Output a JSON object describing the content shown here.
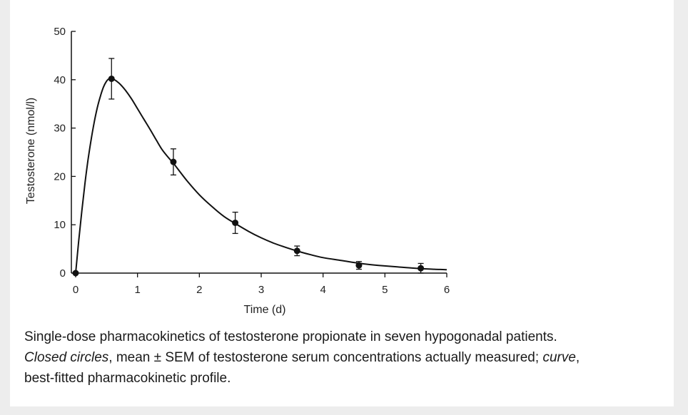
{
  "chart_data": {
    "type": "scatter",
    "xlabel": "Time (d)",
    "ylabel": "Testosterone (nmol/l)",
    "xlim": [
      0,
      6
    ],
    "ylim": [
      0,
      50
    ],
    "xticks": [
      "0",
      "1",
      "2",
      "3",
      "4",
      "5",
      "6"
    ],
    "yticks": [
      "0",
      "10",
      "20",
      "30",
      "40",
      "50"
    ],
    "grid": false,
    "legend": "none",
    "series": [
      {
        "marker": "closed-circle",
        "x": [
          0,
          0.58,
          1.58,
          2.58,
          3.58,
          4.58,
          5.58
        ],
        "y": [
          0,
          40.2,
          23.0,
          10.4,
          4.6,
          1.6,
          1.0
        ],
        "error": [
          0,
          4.2,
          2.7,
          2.2,
          1.0,
          0.8,
          1.0
        ]
      },
      {
        "style": "line",
        "x": [
          0,
          0.05,
          0.1,
          0.15,
          0.2,
          0.25,
          0.3,
          0.35,
          0.4,
          0.45,
          0.5,
          0.55,
          0.6,
          0.7,
          0.8,
          0.9,
          1.0,
          1.1,
          1.2,
          1.3,
          1.4,
          1.5,
          1.6,
          1.8,
          2.0,
          2.2,
          2.4,
          2.6,
          2.8,
          3.0,
          3.2,
          3.4,
          3.6,
          3.8,
          4.0,
          4.3,
          4.6,
          4.9,
          5.2,
          5.5,
          5.8,
          6.0
        ],
        "y": [
          0,
          6.7,
          12.9,
          18.5,
          23.4,
          27.6,
          31.2,
          34.2,
          36.6,
          38.5,
          39.7,
          40.3,
          40.2,
          39.3,
          37.9,
          36.1,
          34.0,
          31.9,
          29.8,
          27.6,
          25.5,
          23.9,
          22.4,
          19.1,
          16.2,
          13.8,
          11.7,
          10.1,
          8.6,
          7.3,
          6.2,
          5.3,
          4.5,
          3.8,
          3.2,
          2.6,
          2.0,
          1.6,
          1.3,
          1.0,
          0.8,
          0.7
        ]
      }
    ]
  },
  "caption": {
    "line1": "Single-dose pharmacokinetics of testosterone propionate in seven hypogonadal patients.",
    "term1": "Closed circles",
    "text2": ", mean ± SEM of testosterone serum concentrations actually measured; ",
    "term2": "curve",
    "text3": ",",
    "line3": "best-fitted pharmacokinetic profile."
  }
}
